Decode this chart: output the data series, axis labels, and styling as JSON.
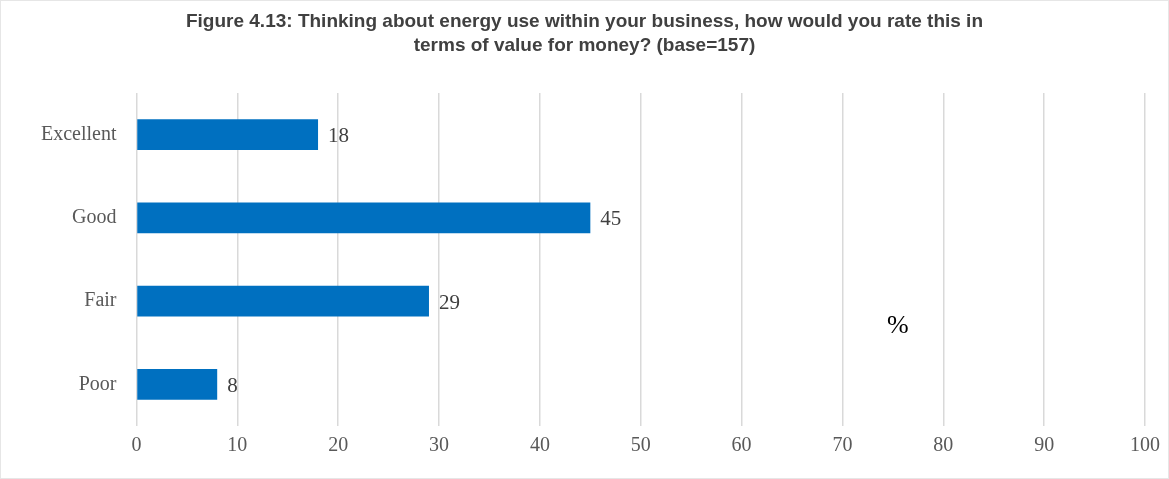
{
  "chart_data": {
    "type": "bar",
    "orientation": "horizontal",
    "title": "Figure 4.13: Thinking about energy use within your business, how would you rate this in terms of value for money?  (base=157)",
    "categories": [
      "Excellent",
      "Good",
      "Fair",
      "Poor"
    ],
    "values": [
      18,
      45,
      29,
      8
    ],
    "color": "#0070c0",
    "xlim": [
      0,
      100
    ],
    "xticks": [
      0,
      10,
      20,
      30,
      40,
      50,
      60,
      70,
      80,
      90,
      100
    ],
    "grid": "x",
    "data_labels": true,
    "legend": false,
    "annotations": [
      "%"
    ]
  }
}
